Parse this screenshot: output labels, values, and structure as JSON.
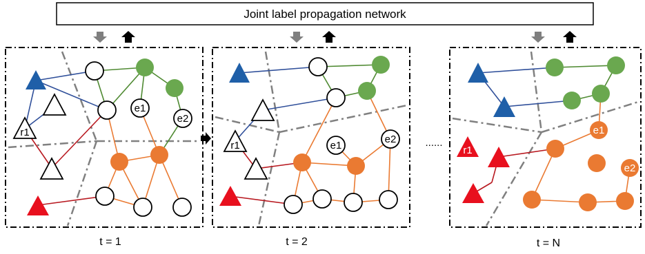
{
  "network": {
    "title": "Joint label propagation network"
  },
  "colors": {
    "blue": "#1f5fa8",
    "green": "#6aa84f",
    "orange": "#ea7a32",
    "red": "#e8101e",
    "edge_blue": "#2f4f9a",
    "edge_green": "#4f8a32",
    "edge_orange": "#ea7a32",
    "edge_red": "#b81920",
    "partition": "#808080",
    "arrow_down": "#7f7f7f",
    "arrow_up": "#000000"
  },
  "panels": [
    {
      "caption": "t = 1",
      "labels": {
        "e1": "e1",
        "e2": "e2",
        "r1": "r1"
      }
    },
    {
      "caption": "t = 2",
      "labels": {
        "e1": "e1",
        "e2": "e2",
        "r1": "r1"
      }
    },
    {
      "caption": "t = N",
      "labels": {
        "e1": "e1",
        "e2": "e2",
        "r1": "r1"
      }
    }
  ],
  "ellipsis": "......"
}
